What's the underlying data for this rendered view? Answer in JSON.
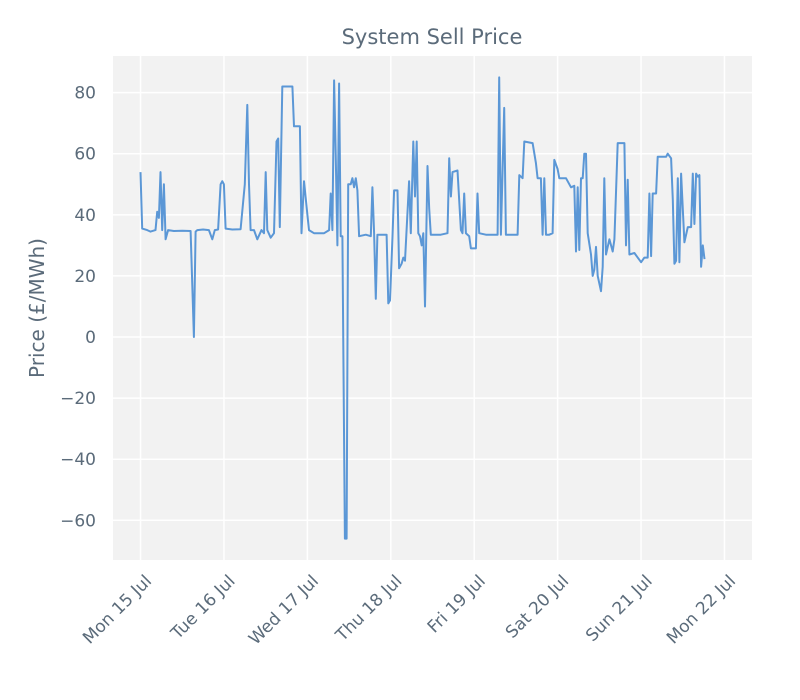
{
  "chart_data": {
    "type": "line",
    "title": "System Sell Price",
    "xlabel": "",
    "ylabel": "Price (£/MWh)",
    "x_unit": "days since Mon 15 Jul 00:00",
    "xlim": [
      -0.33,
      7.33
    ],
    "ylim": [
      -73,
      92
    ],
    "grid": true,
    "line_color": "#5b97d6",
    "background_color": "#f2f2f2",
    "x_ticks": [
      {
        "value": 0,
        "label": "Mon 15 Jul"
      },
      {
        "value": 1,
        "label": "Tue 16 Jul"
      },
      {
        "value": 2,
        "label": "Wed 17 Jul"
      },
      {
        "value": 3,
        "label": "Thu 18 Jul"
      },
      {
        "value": 4,
        "label": "Fri 19 Jul"
      },
      {
        "value": 5,
        "label": "Sat 20 Jul"
      },
      {
        "value": 6,
        "label": "Sun 21 Jul"
      },
      {
        "value": 7,
        "label": "Mon 22 Jul"
      }
    ],
    "y_ticks": [
      {
        "value": 80,
        "label": "80"
      },
      {
        "value": 60,
        "label": "60"
      },
      {
        "value": 40,
        "label": "40"
      },
      {
        "value": 20,
        "label": "20"
      },
      {
        "value": 0,
        "label": "0"
      },
      {
        "value": -20,
        "label": "−20"
      },
      {
        "value": -40,
        "label": "−40"
      },
      {
        "value": -60,
        "label": "−60"
      }
    ],
    "series": [
      {
        "name": "System Sell Price",
        "points": [
          [
            0.0,
            54
          ],
          [
            0.02,
            35.5
          ],
          [
            0.08,
            35
          ],
          [
            0.12,
            34.5
          ],
          [
            0.18,
            35
          ],
          [
            0.2,
            41
          ],
          [
            0.22,
            39
          ],
          [
            0.24,
            54
          ],
          [
            0.26,
            35
          ],
          [
            0.28,
            50
          ],
          [
            0.3,
            32
          ],
          [
            0.33,
            35
          ],
          [
            0.4,
            34.7
          ],
          [
            0.5,
            34.8
          ],
          [
            0.6,
            34.7
          ],
          [
            0.64,
            0
          ],
          [
            0.66,
            34.5
          ],
          [
            0.68,
            35
          ],
          [
            0.75,
            35.2
          ],
          [
            0.82,
            35
          ],
          [
            0.86,
            32
          ],
          [
            0.89,
            35
          ],
          [
            0.93,
            35.2
          ],
          [
            0.96,
            50
          ],
          [
            0.98,
            51
          ],
          [
            1.0,
            50
          ],
          [
            1.02,
            35.5
          ],
          [
            1.1,
            35.2
          ],
          [
            1.2,
            35.3
          ],
          [
            1.25,
            50
          ],
          [
            1.28,
            76
          ],
          [
            1.3,
            50
          ],
          [
            1.32,
            35
          ],
          [
            1.36,
            35
          ],
          [
            1.4,
            32
          ],
          [
            1.45,
            35
          ],
          [
            1.48,
            34
          ],
          [
            1.5,
            54
          ],
          [
            1.52,
            35
          ],
          [
            1.56,
            32.5
          ],
          [
            1.6,
            34
          ],
          [
            1.63,
            64
          ],
          [
            1.65,
            65
          ],
          [
            1.67,
            36
          ],
          [
            1.7,
            82
          ],
          [
            1.8,
            82
          ],
          [
            1.82,
            82
          ],
          [
            1.84,
            69
          ],
          [
            1.91,
            69
          ],
          [
            1.93,
            34
          ],
          [
            1.96,
            51
          ],
          [
            2.0,
            40
          ],
          [
            2.02,
            35
          ],
          [
            2.08,
            34
          ],
          [
            2.2,
            34
          ],
          [
            2.26,
            35
          ],
          [
            2.28,
            47
          ],
          [
            2.3,
            35
          ],
          [
            2.32,
            84
          ],
          [
            2.34,
            60
          ],
          [
            2.36,
            30
          ],
          [
            2.38,
            83
          ],
          [
            2.4,
            33
          ],
          [
            2.42,
            33
          ],
          [
            2.45,
            -66
          ],
          [
            2.47,
            -66
          ],
          [
            2.49,
            50
          ],
          [
            2.52,
            50
          ],
          [
            2.54,
            52
          ],
          [
            2.56,
            49
          ],
          [
            2.58,
            52
          ],
          [
            2.6,
            48
          ],
          [
            2.62,
            33
          ],
          [
            2.7,
            33.5
          ],
          [
            2.76,
            33
          ],
          [
            2.78,
            49
          ],
          [
            2.8,
            34
          ],
          [
            2.82,
            12.5
          ],
          [
            2.84,
            33.5
          ],
          [
            2.95,
            33.5
          ],
          [
            2.97,
            11
          ],
          [
            2.99,
            12
          ],
          [
            3.02,
            33
          ],
          [
            3.04,
            48
          ],
          [
            3.08,
            48
          ],
          [
            3.1,
            22.5
          ],
          [
            3.13,
            24
          ],
          [
            3.15,
            26
          ],
          [
            3.17,
            25
          ],
          [
            3.22,
            51
          ],
          [
            3.24,
            34
          ],
          [
            3.27,
            64
          ],
          [
            3.29,
            46
          ],
          [
            3.31,
            64
          ],
          [
            3.33,
            34
          ],
          [
            3.35,
            33
          ],
          [
            3.37,
            30
          ],
          [
            3.39,
            34
          ],
          [
            3.41,
            10
          ],
          [
            3.44,
            56
          ],
          [
            3.46,
            42
          ],
          [
            3.48,
            33.5
          ],
          [
            3.6,
            33.5
          ],
          [
            3.68,
            34
          ],
          [
            3.7,
            58.5
          ],
          [
            3.72,
            46
          ],
          [
            3.74,
            54
          ],
          [
            3.8,
            54.5
          ],
          [
            3.84,
            35
          ],
          [
            3.86,
            34
          ],
          [
            3.88,
            47
          ],
          [
            3.9,
            34
          ],
          [
            3.94,
            33
          ],
          [
            3.96,
            29
          ],
          [
            4.02,
            29
          ],
          [
            4.04,
            47
          ],
          [
            4.06,
            34
          ],
          [
            4.14,
            33.5
          ],
          [
            4.28,
            33.5
          ],
          [
            4.3,
            85
          ],
          [
            4.32,
            33.5
          ],
          [
            4.36,
            75
          ],
          [
            4.38,
            33.5
          ],
          [
            4.52,
            33.5
          ],
          [
            4.54,
            53
          ],
          [
            4.58,
            52
          ],
          [
            4.6,
            64
          ],
          [
            4.7,
            63.5
          ],
          [
            4.74,
            57
          ],
          [
            4.76,
            52
          ],
          [
            4.8,
            52
          ],
          [
            4.82,
            33.5
          ],
          [
            4.84,
            52
          ],
          [
            4.86,
            33.5
          ],
          [
            4.9,
            33.5
          ],
          [
            4.94,
            34
          ],
          [
            4.96,
            58
          ],
          [
            5.0,
            55
          ],
          [
            5.02,
            52
          ],
          [
            5.1,
            52
          ],
          [
            5.16,
            49
          ],
          [
            5.2,
            49.5
          ],
          [
            5.22,
            28
          ],
          [
            5.24,
            49
          ],
          [
            5.26,
            28.5
          ],
          [
            5.28,
            52
          ],
          [
            5.3,
            52
          ],
          [
            5.32,
            60
          ],
          [
            5.34,
            60
          ],
          [
            5.36,
            34
          ],
          [
            5.4,
            27
          ],
          [
            5.42,
            20
          ],
          [
            5.44,
            22
          ],
          [
            5.46,
            29.5
          ],
          [
            5.48,
            20
          ],
          [
            5.52,
            15
          ],
          [
            5.54,
            23
          ],
          [
            5.56,
            52
          ],
          [
            5.58,
            27
          ],
          [
            5.62,
            32
          ],
          [
            5.66,
            28
          ],
          [
            5.68,
            32
          ],
          [
            5.72,
            63.5
          ],
          [
            5.8,
            63.5
          ],
          [
            5.82,
            30
          ],
          [
            5.84,
            51.5
          ],
          [
            5.86,
            27
          ],
          [
            5.92,
            27.5
          ],
          [
            5.96,
            26
          ],
          [
            6.0,
            24.5
          ],
          [
            6.04,
            26
          ],
          [
            6.08,
            26
          ],
          [
            6.1,
            47
          ],
          [
            6.12,
            26.5
          ],
          [
            6.14,
            47
          ],
          [
            6.18,
            47
          ],
          [
            6.2,
            59
          ],
          [
            6.3,
            59
          ],
          [
            6.32,
            60
          ],
          [
            6.36,
            58.5
          ],
          [
            6.38,
            45
          ],
          [
            6.4,
            24
          ],
          [
            6.42,
            25
          ],
          [
            6.44,
            52
          ],
          [
            6.46,
            24.5
          ],
          [
            6.48,
            53.5
          ],
          [
            6.52,
            31
          ],
          [
            6.56,
            36
          ],
          [
            6.6,
            36
          ],
          [
            6.62,
            53.5
          ],
          [
            6.64,
            37
          ],
          [
            6.66,
            53.5
          ],
          [
            6.68,
            52.5
          ],
          [
            6.7,
            53
          ],
          [
            6.72,
            23
          ],
          [
            6.74,
            30
          ],
          [
            6.76,
            25.5
          ]
        ]
      }
    ]
  }
}
